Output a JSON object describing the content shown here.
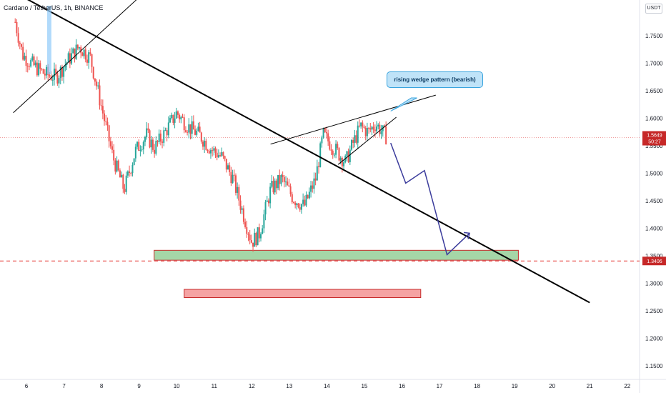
{
  "header": {
    "symbol": "Cardano / TetherUS, 1h, BINANCE",
    "unit": "USDT"
  },
  "annotation": "rising wedge pattern (bearish)",
  "price_tag": {
    "price": "1.5649",
    "countdown": "50:27"
  },
  "level_tag": "1.3406",
  "colors": {
    "up": "#26a69a",
    "down": "#ef5350",
    "support_fill": "#a5d6a7",
    "target_fill": "#f5a3a3",
    "projection": "#3b3c9c",
    "current_price": "#c62828"
  },
  "chart_data": {
    "type": "line",
    "ylim": [
      1.11,
      1.83
    ],
    "y_ticks": [
      "1.7500",
      "1.7000",
      "1.6500",
      "1.6000",
      "1.5500",
      "1.5000",
      "1.4500",
      "1.4000",
      "1.3500",
      "1.3000",
      "1.2500",
      "1.2000",
      "1.1500"
    ],
    "x_ticks": [
      "6",
      "7",
      "8",
      "9",
      "10",
      "11",
      "12",
      "13",
      "14",
      "15",
      "16",
      "17",
      "18",
      "19",
      "20",
      "21",
      "22"
    ],
    "current_price": 1.5649,
    "support_level": 1.3406,
    "zones": [
      {
        "name": "support",
        "x": [
          9.4,
          19.1
        ],
        "y": [
          1.342,
          1.36
        ]
      },
      {
        "name": "target",
        "x": [
          10.2,
          16.5
        ],
        "y": [
          1.274,
          1.289
        ]
      }
    ],
    "projection": {
      "x": [
        15.7,
        16.1,
        16.6,
        17.2,
        17.8,
        17.6
      ],
      "y": [
        1.555,
        1.482,
        1.505,
        1.352,
        1.391,
        1.378
      ]
    },
    "price_path": {
      "x": [
        5.7,
        5.9,
        6.2,
        6.5,
        6.8,
        7.1,
        7.4,
        7.7,
        8.0,
        8.3,
        8.6,
        8.9,
        9.2,
        9.4,
        9.7,
        10.0,
        10.3,
        10.6,
        10.9,
        11.2,
        11.5,
        11.8,
        12.0,
        12.2,
        12.5,
        12.8,
        13.1,
        13.4,
        13.7,
        13.9,
        14.2,
        14.5,
        14.7,
        14.9,
        15.1,
        15.3,
        15.6
      ],
      "y": [
        1.775,
        1.715,
        1.695,
        1.68,
        1.675,
        1.705,
        1.73,
        1.71,
        1.62,
        1.53,
        1.47,
        1.54,
        1.57,
        1.545,
        1.575,
        1.61,
        1.585,
        1.57,
        1.545,
        1.53,
        1.49,
        1.42,
        1.375,
        1.39,
        1.47,
        1.49,
        1.455,
        1.44,
        1.49,
        1.57,
        1.545,
        1.52,
        1.555,
        1.585,
        1.575,
        1.59,
        1.565
      ]
    },
    "trend_lines": [
      {
        "x": [
          5.65,
          21.0
        ],
        "y": [
          1.83,
          1.265
        ]
      },
      {
        "x": [
          5.65,
          9.8
        ],
        "y": [
          1.61,
          1.87
        ]
      },
      {
        "x": [
          12.5,
          16.9
        ],
        "y": [
          1.553,
          1.642
        ]
      },
      {
        "x": [
          14.3,
          15.85
        ],
        "y": [
          1.516,
          1.602
        ]
      }
    ],
    "callout_pointer": {
      "x": [
        16.4,
        15.7
      ],
      "y": [
        1.637,
        1.613
      ]
    }
  }
}
